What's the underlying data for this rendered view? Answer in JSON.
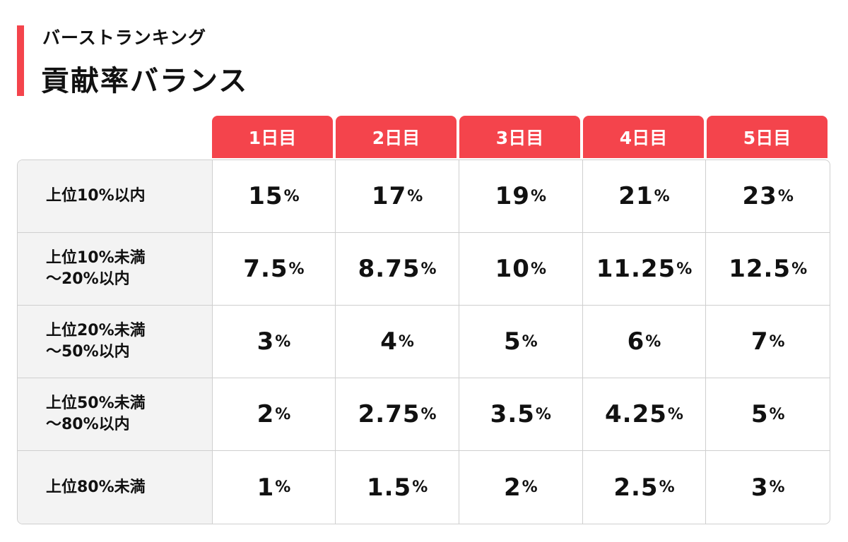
{
  "header": {
    "subtitle": "バーストランキング",
    "title": "貢献率バランス",
    "accent_color": "#f4444c"
  },
  "columns": [
    "1日目",
    "2日目",
    "3日目",
    "4日目",
    "5日目"
  ],
  "rows": [
    {
      "label": "上位10%以内",
      "values": [
        "15",
        "17",
        "19",
        "21",
        "23"
      ]
    },
    {
      "label": "上位10%未満\n～20%以内",
      "values": [
        "7.5",
        "8.75",
        "10",
        "11.25",
        "12.5"
      ]
    },
    {
      "label": "上位20%未満\n～50%以内",
      "values": [
        "3",
        "4",
        "5",
        "6",
        "7"
      ]
    },
    {
      "label": "上位50%未満\n～80%以内",
      "values": [
        "2",
        "2.75",
        "3.5",
        "4.25",
        "5"
      ]
    },
    {
      "label": "上位80%未満",
      "values": [
        "1",
        "1.5",
        "2",
        "2.5",
        "3"
      ]
    }
  ],
  "unit": "%"
}
